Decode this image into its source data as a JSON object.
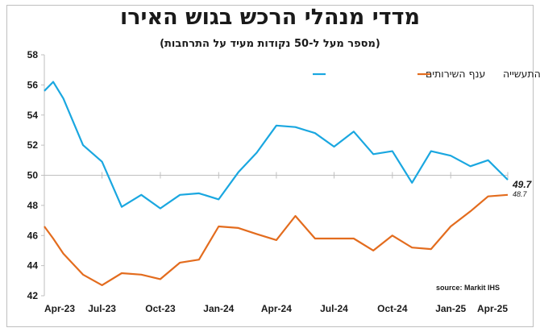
{
  "title": "מדדי מנהלי הרכש בגוש האירו",
  "subtitle": "(מספר מעל ל-50 נקודות מעיד על התרחבות)",
  "source": "source: Markit IHS",
  "colors": {
    "services": "#1aa7e0",
    "manufacturing": "#e36c1e",
    "axis": "#bfbfbf",
    "text": "#1a1a1a"
  },
  "chart_data": {
    "type": "line",
    "title": "מדדי מנהלי הרכש בגוש האירו",
    "subtitle": "(מספר מעל ל-50 נקודות מעיד על התרחבות)",
    "x": [
      "2023-04-01",
      "2023-04-15",
      "2023-05-01",
      "2023-06-01",
      "2023-07-01",
      "2023-08-01",
      "2023-09-01",
      "2023-10-01",
      "2023-11-01",
      "2023-12-01",
      "2024-01-01",
      "2024-02-01",
      "2024-03-01",
      "2024-04-01",
      "2024-05-01",
      "2024-06-01",
      "2024-07-01",
      "2024-08-01",
      "2024-09-01",
      "2024-10-01",
      "2024-11-01",
      "2024-12-01",
      "2025-01-01",
      "2025-02-01",
      "2025-03-01",
      "2025-04-01"
    ],
    "x_tick_labels": [
      "Apr-23",
      "Jul-23",
      "Oct-23",
      "Jan-24",
      "Apr-24",
      "Jul-24",
      "Oct-24",
      "Jan-25",
      "Apr-25"
    ],
    "x_tick_dates": [
      "2023-04-01",
      "2023-07-01",
      "2023-10-01",
      "2024-01-01",
      "2024-04-01",
      "2024-07-01",
      "2024-10-01",
      "2025-01-01",
      "2025-04-01"
    ],
    "y_ticks": [
      42,
      44,
      46,
      48,
      50,
      52,
      54,
      56,
      58
    ],
    "ylim": [
      42,
      58
    ],
    "grid": false,
    "legend_position": "top-right",
    "series": [
      {
        "name": "ענף השירותים",
        "color": "#1aa7e0",
        "values": [
          55.6,
          56.2,
          55.1,
          52.0,
          50.9,
          47.9,
          48.7,
          47.8,
          48.7,
          48.8,
          48.4,
          50.2,
          51.5,
          53.3,
          53.2,
          52.8,
          51.9,
          52.9,
          51.4,
          51.6,
          49.5,
          51.6,
          51.3,
          50.6,
          51.0,
          49.7
        ],
        "end_label": "49.7"
      },
      {
        "name": "ענף התעשייה",
        "color": "#e36c1e",
        "values": [
          46.6,
          45.8,
          44.8,
          43.4,
          42.7,
          43.5,
          43.4,
          43.1,
          44.2,
          44.4,
          46.6,
          46.5,
          46.1,
          45.7,
          47.3,
          45.8,
          45.8,
          45.8,
          45.0,
          46.0,
          45.2,
          45.1,
          46.6,
          47.6,
          48.6,
          48.7
        ],
        "end_label": "48.7"
      }
    ]
  }
}
